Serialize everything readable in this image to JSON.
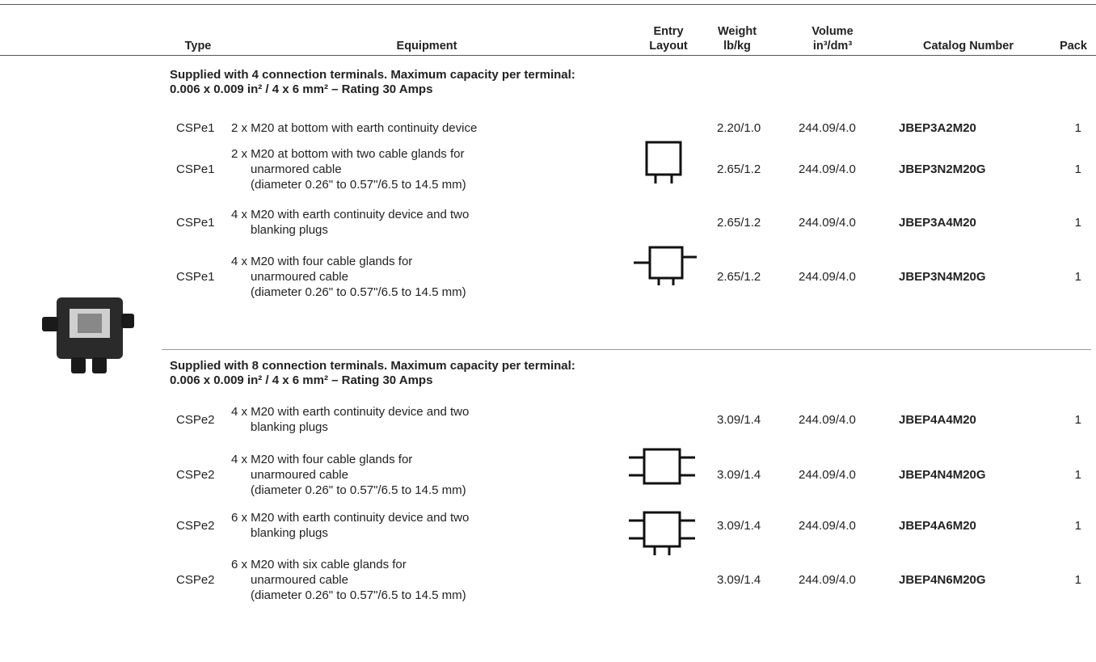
{
  "header": {
    "columns": [
      [
        "Type"
      ],
      [
        "Equipment"
      ],
      [
        "Entry",
        "Layout"
      ],
      [
        "Weight",
        "lb/kg"
      ],
      [
        "Volume",
        "in³/dm³"
      ],
      [
        "Catalog Number"
      ],
      [
        "Pack"
      ]
    ]
  },
  "sections": [
    {
      "heading": [
        "Supplied with 4 connection terminals. Maximum capacity per terminal:",
        "0.006 x 0.009 in² / 4 x 6 mm² – Rating 30 Amps"
      ],
      "rows": [
        {
          "type": "CSPe1",
          "equipment": [
            "2 x M20 at bottom with earth continuity device"
          ],
          "weight": "2.20/1.0",
          "volume": "244.09/4.0",
          "catalog": "JBEP3A2M20",
          "pack": 1
        },
        {
          "type": "CSPe1",
          "equipment": [
            "2 x M20 at bottom with two cable glands for",
            "unarmored cable",
            "(diameter 0.26\" to 0.57\"/6.5 to 14.5 mm)"
          ],
          "weight": "2.65/1.2",
          "volume": "244.09/4.0",
          "catalog": "JBEP3N2M20G",
          "pack": 1
        },
        {
          "type": "CSPe1",
          "equipment": [
            "4 x M20 with earth continuity device and two",
            "blanking plugs"
          ],
          "weight": "2.65/1.2",
          "volume": "244.09/4.0",
          "catalog": "JBEP3A4M20",
          "pack": 1
        },
        {
          "type": "CSPe1",
          "equipment": [
            "4 x M20 with four cable glands for",
            "unarmoured cable",
            "(diameter 0.26\" to 0.57\"/6.5 to 14.5 mm)"
          ],
          "weight": "2.65/1.2",
          "volume": "244.09/4.0",
          "catalog": "JBEP3N4M20G",
          "pack": 1
        }
      ]
    },
    {
      "heading": [
        "Supplied with 8 connection terminals. Maximum capacity per terminal:",
        "0.006 x 0.009 in² / 4 x 6 mm² – Rating 30 Amps"
      ],
      "rows": [
        {
          "type": "CSPe2",
          "equipment": [
            "4 x M20 with earth continuity device and two",
            "blanking plugs"
          ],
          "weight": "3.09/1.4",
          "volume": "244.09/4.0",
          "catalog": "JBEP4A4M20",
          "pack": 1
        },
        {
          "type": "CSPe2",
          "equipment": [
            "4 x M20 with four cable glands for",
            "unarmoured cable",
            "(diameter 0.26\" to 0.57\"/6.5 to 14.5 mm)"
          ],
          "weight": "3.09/1.4",
          "volume": "244.09/4.0",
          "catalog": "JBEP4N4M20G",
          "pack": 1
        },
        {
          "type": "CSPe2",
          "equipment": [
            "6 x M20 with earth continuity device and two",
            "blanking plugs"
          ],
          "weight": "3.09/1.4",
          "volume": "244.09/4.0",
          "catalog": "JBEP4A6M20",
          "pack": 1
        },
        {
          "type": "CSPe2",
          "equipment": [
            "6 x M20 with six cable glands for",
            "unarmoured cable",
            "(diameter 0.26\" to 0.57\"/6.5 to 14.5 mm)"
          ],
          "weight": "3.09/1.4",
          "volume": "244.09/4.0",
          "catalog": "JBEP4N6M20G",
          "pack": 1
        }
      ]
    }
  ]
}
